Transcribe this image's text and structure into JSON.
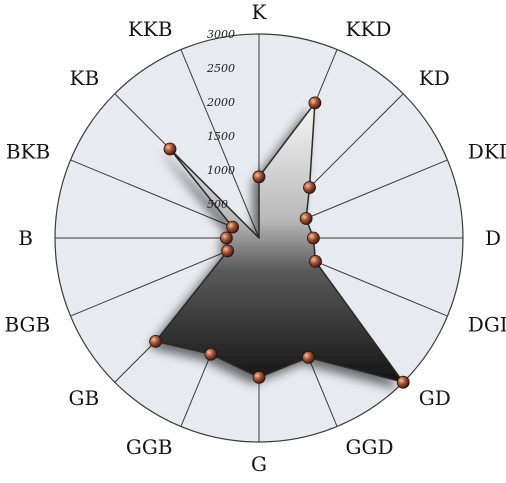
{
  "chart_data": {
    "type": "radar",
    "categories": [
      "K",
      "KKD",
      "KD",
      "DKD",
      "D",
      "DGD",
      "GD",
      "GGD",
      "G",
      "GGB",
      "GB",
      "BGB",
      "B",
      "BKB",
      "KB",
      "KKB"
    ],
    "values": [
      900,
      2150,
      1050,
      750,
      800,
      900,
      3000,
      1900,
      2050,
      1850,
      2150,
      500,
      480,
      420,
      1850,
      0
    ],
    "radial_ticks": [
      "500",
      "1000",
      "1500",
      "2000",
      "2500",
      "3000"
    ],
    "rlim": [
      0,
      3000
    ],
    "grid": true,
    "colors": {
      "fill_dark": "#1c1c1c",
      "fill_light": "#f4f4f4",
      "marker": "#7a3a2a",
      "marker_highlight": "#e8b08a",
      "plot_background": "#e9eaf0",
      "grid_line": "#3a3a3a"
    }
  }
}
